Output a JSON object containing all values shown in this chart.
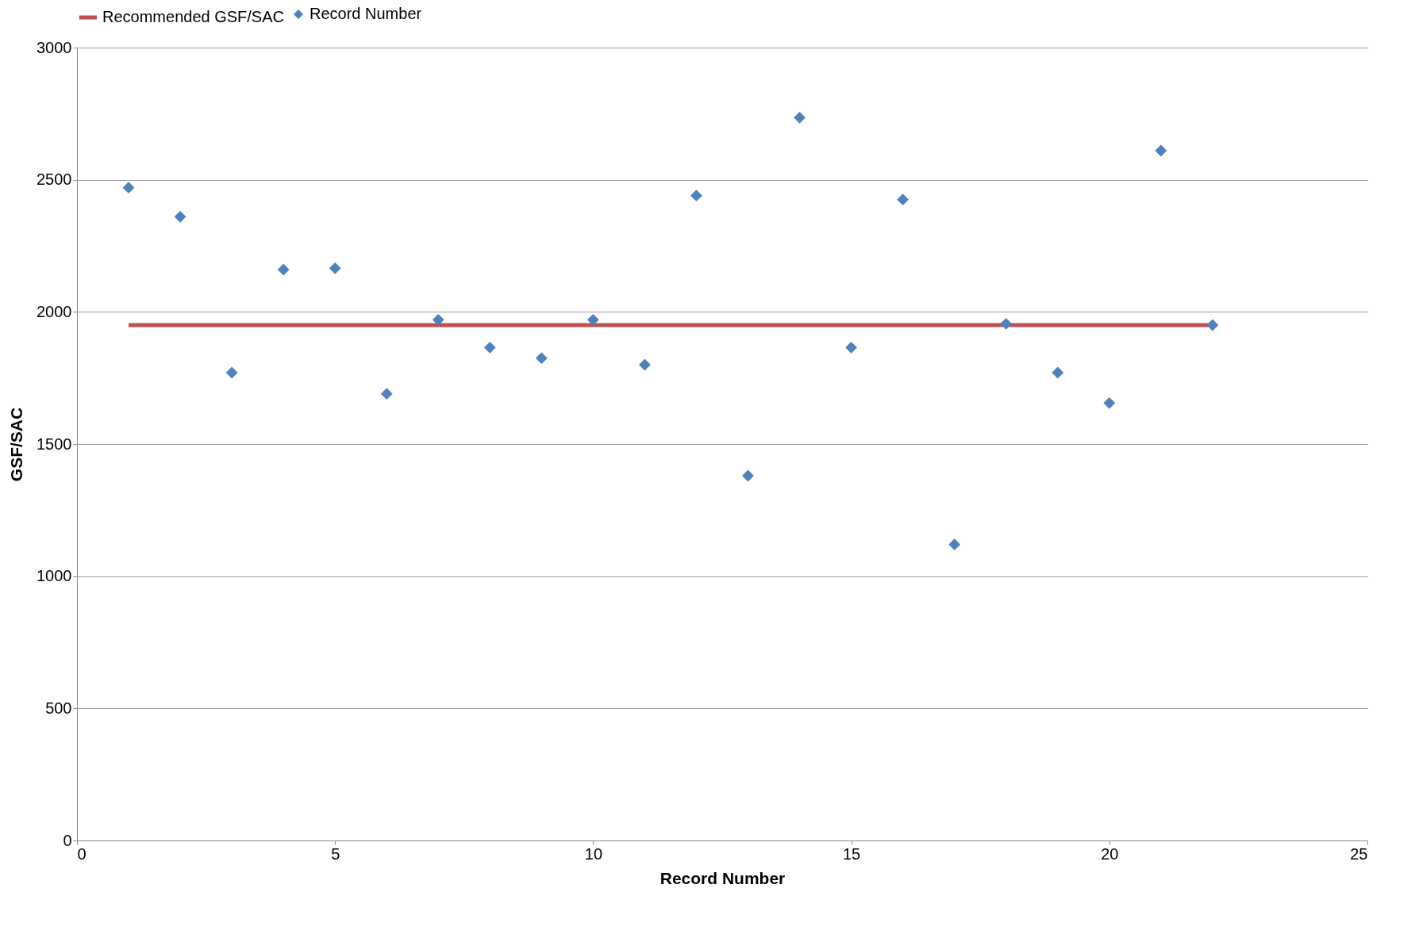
{
  "chart_data": {
    "type": "scatter",
    "xlabel": "Record Number",
    "ylabel": "GSF/SAC",
    "xlim": [
      0,
      25
    ],
    "xticks": [
      0,
      5,
      10,
      15,
      20,
      25
    ],
    "ylim": [
      0,
      3000
    ],
    "yticks": [
      0,
      500,
      1000,
      1500,
      2000,
      2500,
      3000
    ],
    "grid": "y",
    "legend": "top",
    "series": [
      {
        "name": "Recommended GSF/SAC",
        "type": "line",
        "line_style": "solid",
        "color": "#c0504d",
        "x": [
          1,
          22
        ],
        "values": [
          1950,
          1950
        ]
      },
      {
        "name": "Record Number",
        "marker": "diamond",
        "color": "#4f81bd",
        "x": [
          1,
          2,
          3,
          4,
          5,
          6,
          7,
          8,
          9,
          10,
          11,
          12,
          13,
          14,
          15,
          16,
          17,
          18,
          19,
          20,
          21,
          22
        ],
        "values": [
          2470,
          2360,
          1770,
          2160,
          2165,
          1690,
          1970,
          1865,
          1825,
          1970,
          1800,
          2440,
          1380,
          2735,
          1865,
          2425,
          1120,
          1955,
          1770,
          1655,
          2610,
          1950
        ]
      }
    ]
  }
}
